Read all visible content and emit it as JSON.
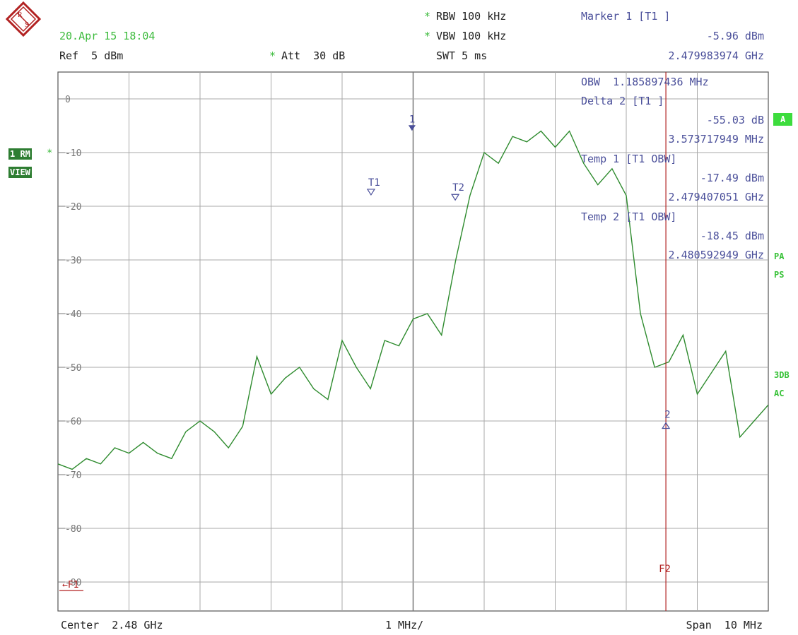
{
  "header": {
    "datetime": "20.Apr 15 18:04",
    "ref": "Ref  5 dBm",
    "att_star": "*",
    "att": "Att  30 dB",
    "rbw_star": "*",
    "rbw": "RBW 100 kHz",
    "vbw_star": "*",
    "vbw": "VBW 100 kHz",
    "swt": "SWT 5 ms"
  },
  "marker_info": {
    "m1_title": "Marker 1 [T1 ]",
    "m1_level": "-5.96 dBm",
    "m1_freq": "2.479983974 GHz",
    "obw": "OBW  1.185897436 MHz",
    "d2_title": "Delta 2 [T1 ]",
    "d2_level": "-55.03 dB",
    "d2_freq": "3.573717949 MHz",
    "t1_title": "Temp 1 [T1 OBW]",
    "t1_level": "-17.49 dBm",
    "t1_freq": "2.479407051 GHz",
    "t2_title": "Temp 2 [T1 OBW]",
    "t2_level": "-18.45 dBm",
    "t2_freq": "2.480592949 GHz"
  },
  "left_badges": {
    "trace": "1 RM",
    "star": "*",
    "view": "VIEW"
  },
  "right_badges": {
    "a": "A",
    "pa": "PA",
    "ps": "PS",
    "db3": "3DB",
    "ac": "AC"
  },
  "footer": {
    "center": "Center  2.48 GHz",
    "div": "1 MHz/",
    "span": "Span  10 MHz"
  },
  "plot_labels": {
    "y_ticks": [
      "0",
      "-10",
      "-20",
      "-30",
      "-40",
      "-50",
      "-60",
      "-70",
      "-80",
      "-90"
    ],
    "marker1": "1",
    "t1": "T1",
    "t2": "T2",
    "marker2": "2",
    "f2": "F2",
    "f1_arrow": "←F1"
  },
  "colors": {
    "trace": "#2e8b2e",
    "grid": "#a8a8a8",
    "marker": "#4a4f9a",
    "line": "#b22222"
  },
  "chart_data": {
    "type": "line",
    "title": "",
    "xlabel": "",
    "ylabel": "",
    "xlim": [
      2.475,
      2.485
    ],
    "ylim": [
      -95,
      5
    ],
    "x_unit": "GHz",
    "y_unit": "dBm",
    "series": [
      {
        "x": [
          2.475,
          2.4752,
          2.4754,
          2.4756,
          2.4758,
          2.476,
          2.4762,
          2.4764,
          2.4766,
          2.4768,
          2.477,
          2.4772,
          2.4774,
          2.4776,
          2.4778,
          2.478,
          2.4782,
          2.4784,
          2.4786,
          2.4788,
          2.479,
          2.4792,
          2.4794,
          2.4796,
          2.4798,
          2.48,
          2.4802,
          2.4804,
          2.4806,
          2.4808,
          2.481,
          2.4812,
          2.4814,
          2.4816,
          2.4818,
          2.482,
          2.4822,
          2.4824,
          2.4826,
          2.4828,
          2.483,
          2.4832,
          2.4834,
          2.4836,
          2.4838,
          2.484,
          2.4842,
          2.4844,
          2.4846,
          2.4848,
          2.485
        ],
        "values": [
          -68,
          -69,
          -67,
          -68,
          -65,
          -66,
          -64,
          -66,
          -67,
          -62,
          -60,
          -62,
          -65,
          -61,
          -48,
          -55,
          -52,
          -50,
          -54,
          -56,
          -45,
          -50,
          -54,
          -45,
          -46,
          -41,
          -40,
          -44,
          -30,
          -18,
          -10,
          -12,
          -7,
          -8,
          -6,
          -9,
          -6,
          -12,
          -16,
          -13,
          -18,
          -40,
          -50,
          -49,
          -44,
          -55,
          -51,
          -47,
          -63,
          -60,
          -57
        ]
      }
    ],
    "markers": [
      {
        "name": "1",
        "x": 2.479984,
        "y": -5.96
      },
      {
        "name": "T1",
        "x": 2.479407,
        "y": -17.49
      },
      {
        "name": "T2",
        "x": 2.480593,
        "y": -18.45
      },
      {
        "name": "2",
        "x": 2.483558,
        "y": -60.99
      }
    ],
    "vertical_line": {
      "name": "F2",
      "x": 2.483558
    },
    "grid": true
  }
}
